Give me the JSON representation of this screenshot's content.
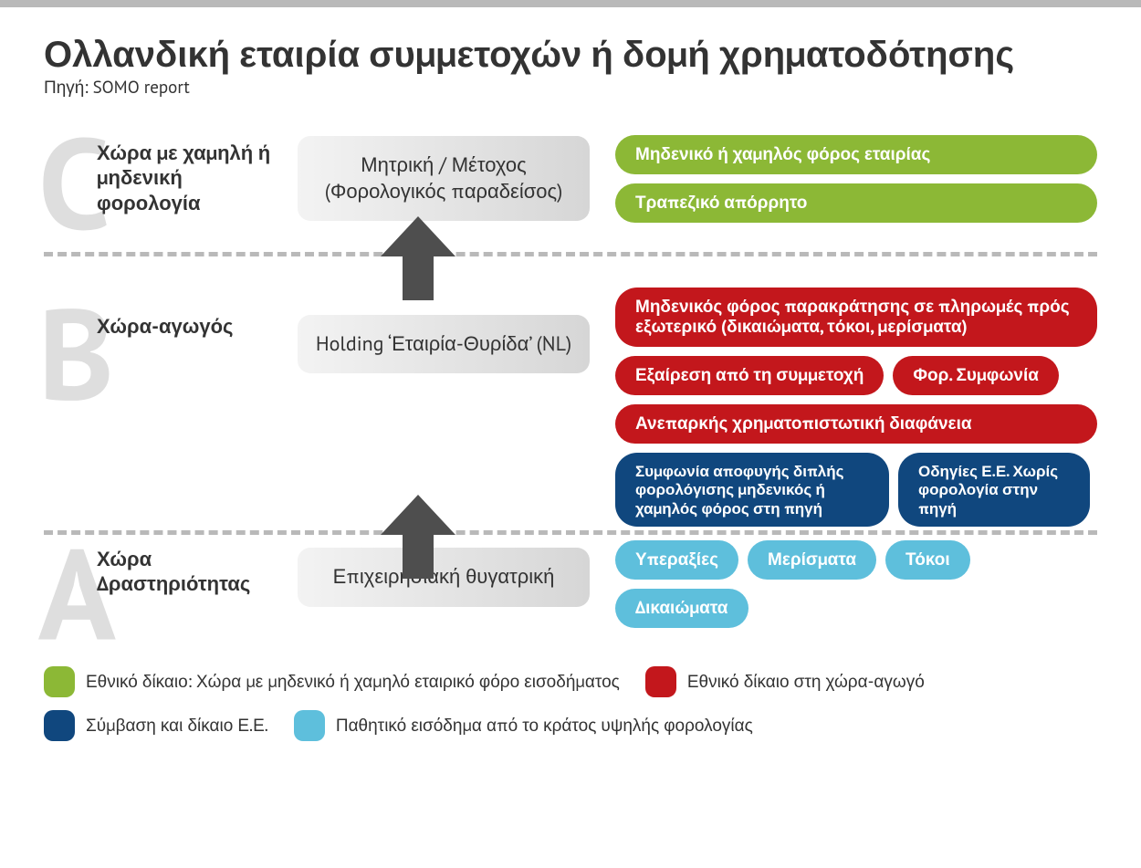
{
  "colors": {
    "green": "#8cb836",
    "red": "#c3171c",
    "darkblue": "#10477e",
    "lightblue": "#5ebfdc",
    "arrow": "#4e4e4e",
    "grayBoxFrom": "#f3f3f3",
    "grayBoxTo": "#d6d6d6",
    "bigLetter": "#dedede",
    "divider": "#b9b9b9",
    "text": "#333333",
    "background": "#ffffff"
  },
  "title": "Ολλανδική εταιρία συμμετοχών ή δομή χρηματοδότησης",
  "source": "Πηγή: SOMO report",
  "tiers": {
    "c": {
      "letter": "C",
      "label": "Χώρα με χαμηλή ή μηδενική φορολογία",
      "box": "Μητρική / Μέτοχος (Φορολογικός παραδείσος)",
      "pills": [
        {
          "text": "Μηδενικό ή χαμηλός φόρος εταιρίας",
          "color": "green",
          "full": true
        },
        {
          "text": "Τραπεζικό απόρρητο",
          "color": "green",
          "full": true
        }
      ]
    },
    "b": {
      "letter": "B",
      "label": "Χώρα-αγωγός",
      "box": "Holding ‘Εταιρία-Θυρίδα’ (NL)",
      "pills": [
        {
          "text": "Μηδενικός φόρος παρακράτησης σε πληρωμές πρός εξωτερικό (δικαιώματα, τόκοι, μερίσματα)",
          "color": "red",
          "full": true
        },
        {
          "text": "Εξαίρεση από τη συμμετοχή",
          "color": "red"
        },
        {
          "text": "Φορ. Συμφωνία",
          "color": "red"
        },
        {
          "text": "Ανεπαρκής χρηματοπιστωτική διαφάνεια",
          "color": "red",
          "full": true
        },
        {
          "text": "Συμφωνία αποφυγής διπλής φορολόγισης μηδενικός ή χαμηλός φόρος στη πηγή",
          "color": "darkblue",
          "small": true
        },
        {
          "text": "Οδηγίες Ε.Ε. Χωρίς φορολογία στην πηγή",
          "color": "darkblue",
          "small": true
        }
      ]
    },
    "a": {
      "letter": "A",
      "label": "Χώρα Δραστηριότητας",
      "box": "Επιχειρησιακή θυγατρική",
      "pills": [
        {
          "text": "Υπεραξίες",
          "color": "lightblue"
        },
        {
          "text": "Μερίσματα",
          "color": "lightblue"
        },
        {
          "text": "Τόκοι",
          "color": "lightblue"
        },
        {
          "text": "Δικαιώματα",
          "color": "lightblue"
        }
      ]
    }
  },
  "legend": [
    {
      "color": "green",
      "text": "Εθνικό δίκαιο: Χώρα με μηδενικό ή χαμηλό εταιρικό φόρο εισοδήματος"
    },
    {
      "color": "red",
      "text": "Εθνικό δίκαιο στη χώρα-αγωγό"
    },
    {
      "color": "darkblue",
      "text": "Σύμβαση και δίκαιο Ε.Ε."
    },
    {
      "color": "lightblue",
      "text": "Παθητικό εισόδημα από το κράτος υψηλής φορολογίας"
    }
  ]
}
